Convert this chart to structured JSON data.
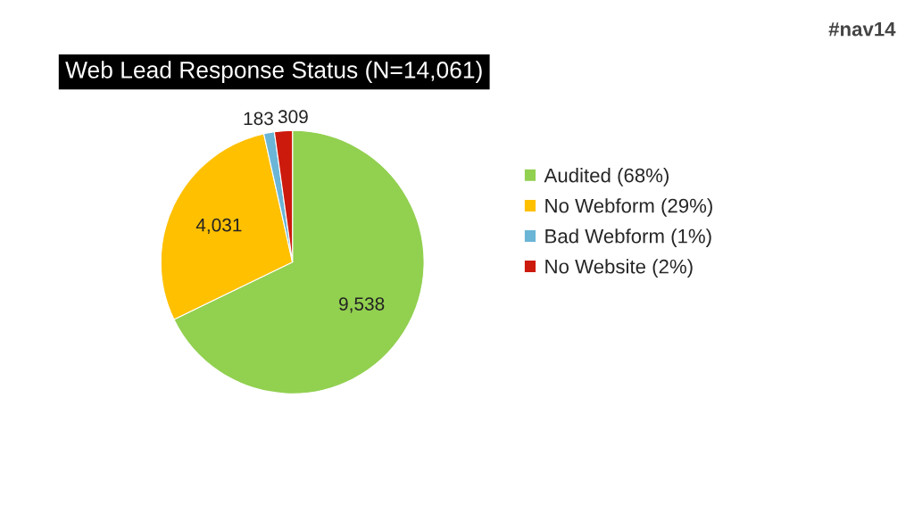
{
  "chart_data": {
    "type": "pie",
    "title": "Web Lead Response Status (N=14,061)",
    "categories": [
      "Audited (68%)",
      "No Webform (29%)",
      "Bad Webform (1%)",
      "No Website (2%)"
    ],
    "values": [
      9538,
      4031,
      183,
      309
    ],
    "value_labels": [
      "9,538",
      "4,031",
      "183",
      "309"
    ],
    "colors": [
      "#92d050",
      "#ffc000",
      "#6bb5d6",
      "#cc1a0c"
    ],
    "legend": "right",
    "annotations": [
      "#nav14"
    ]
  }
}
